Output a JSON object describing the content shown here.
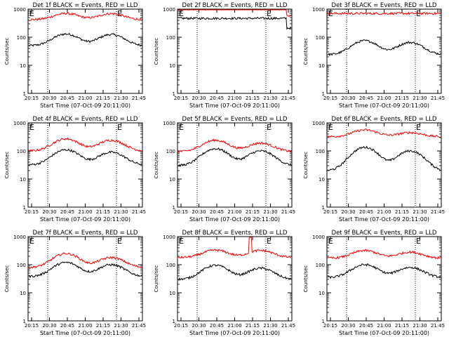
{
  "chart_data": [
    {
      "type": "line",
      "title": "Det 1f BLACK = Events, RED = LLD",
      "ylabel": "Counts/sec",
      "xlabel": "Start Time (07-Oct-09 20:11:00)",
      "x_ticks": [
        "20:15",
        "20:30",
        "20:45",
        "21:00",
        "21:15",
        "21:30",
        "21:45"
      ],
      "y_ticks": [
        "1",
        "10",
        "100",
        "1000"
      ],
      "yscale": "log",
      "ylim": [
        1,
        1000
      ],
      "markers": [
        "E",
        "E"
      ],
      "series": [
        {
          "color": "#000000",
          "base": 50,
          "peaks": [
            {
              "t": 33,
              "v": 130
            },
            {
              "t": 73,
              "v": 125
            }
          ]
        },
        {
          "color": "#ff0000",
          "base": 420,
          "peaks": [
            {
              "t": 33,
              "v": 700
            },
            {
              "t": 73,
              "v": 690
            }
          ]
        }
      ]
    },
    {
      "type": "line",
      "title": "Det 2f BLACK = Events, RED = LLD",
      "ylabel": "Counts/sec",
      "xlabel": "Start Time (07-Oct-09 20:11:00)",
      "x_ticks": [
        "20:15",
        "20:30",
        "20:45",
        "21:00",
        "21:15",
        "21:30",
        "21:45"
      ],
      "y_ticks": [
        "1",
        "10",
        "100",
        "1000"
      ],
      "yscale": "log",
      "ylim": [
        1,
        1000
      ],
      "markers": [
        "E",
        "E"
      ],
      "series": [
        {
          "color": "#000000",
          "base": 470,
          "peaks": [],
          "dip_end": true
        },
        {
          "color": "#ff0000",
          "base": 1300,
          "peaks": [],
          "dip_end": true
        }
      ]
    },
    {
      "type": "line",
      "title": "Det 3f BLACK = Events, RED = LLD",
      "ylabel": "Counts/sec",
      "xlabel": "Start Time (07-Oct-09 20:11:00)",
      "x_ticks": [
        "20:15",
        "20:30",
        "20:45",
        "21:00",
        "21:15",
        "21:30",
        "21:45"
      ],
      "y_ticks": [
        "1",
        "10",
        "100",
        "1000"
      ],
      "yscale": "log",
      "ylim": [
        1,
        1000
      ],
      "markers": [
        "E",
        "E"
      ],
      "series": [
        {
          "color": "#000000",
          "base": 24,
          "peaks": [
            {
              "t": 33,
              "v": 75
            },
            {
              "t": 73,
              "v": 65
            }
          ]
        },
        {
          "color": "#ff0000",
          "base": 700,
          "peaks": []
        }
      ]
    },
    {
      "type": "line",
      "title": "Det 4f BLACK = Events, RED = LLD",
      "ylabel": "Counts/sec",
      "xlabel": "Start Time (07-Oct-09 20:11:00)",
      "x_ticks": [
        "20:15",
        "20:30",
        "20:45",
        "21:00",
        "21:15",
        "21:30",
        "21:45"
      ],
      "y_ticks": [
        "1",
        "10",
        "100",
        "1000"
      ],
      "yscale": "log",
      "ylim": [
        1,
        1000
      ],
      "markers": [
        "E",
        "E"
      ],
      "series": [
        {
          "color": "#000000",
          "base": 32,
          "peaks": [
            {
              "t": 33,
              "v": 110
            },
            {
              "t": 73,
              "v": 90
            }
          ]
        },
        {
          "color": "#ff0000",
          "base": 100,
          "peaks": [
            {
              "t": 33,
              "v": 270
            },
            {
              "t": 73,
              "v": 240
            }
          ]
        }
      ]
    },
    {
      "type": "line",
      "title": "Det 5f BLACK = Events, RED = LLD",
      "ylabel": "Counts/sec",
      "xlabel": "Start Time (07-Oct-09 20:11:00)",
      "x_ticks": [
        "20:15",
        "20:30",
        "20:45",
        "21:00",
        "21:15",
        "21:30",
        "21:45"
      ],
      "y_ticks": [
        "1",
        "10",
        "100",
        "1000"
      ],
      "yscale": "log",
      "ylim": [
        1,
        1000
      ],
      "markers": [
        "E",
        "E"
      ],
      "series": [
        {
          "color": "#000000",
          "base": 30,
          "peaks": [
            {
              "t": 33,
              "v": 120
            },
            {
              "t": 73,
              "v": 100
            }
          ]
        },
        {
          "color": "#ff0000",
          "base": 95,
          "peaks": [
            {
              "t": 33,
              "v": 240
            },
            {
              "t": 73,
              "v": 190
            }
          ]
        }
      ]
    },
    {
      "type": "line",
      "title": "Det 6f BLACK = Events, RED = LLD",
      "ylabel": "Counts/sec",
      "xlabel": "Start Time (07-Oct-09 20:11:00)",
      "x_ticks": [
        "20:15",
        "20:30",
        "20:45",
        "21:00",
        "21:15",
        "21:30",
        "21:45"
      ],
      "y_ticks": [
        "1",
        "10",
        "100",
        "1000"
      ],
      "yscale": "log",
      "ylim": [
        1,
        1000
      ],
      "markers": [
        "E",
        "E"
      ],
      "series": [
        {
          "color": "#000000",
          "base": 20,
          "peaks": [
            {
              "t": 33,
              "v": 135
            },
            {
              "t": 73,
              "v": 100
            }
          ]
        },
        {
          "color": "#ff0000",
          "base": 320,
          "peaks": [
            {
              "t": 33,
              "v": 560
            },
            {
              "t": 73,
              "v": 450
            }
          ]
        }
      ]
    },
    {
      "type": "line",
      "title": "Det 7f BLACK = Events, RED = LLD",
      "ylabel": "Counts/sec",
      "xlabel": "Start Time (07-Oct-09 20:11:00)",
      "x_ticks": [
        "20:15",
        "20:30",
        "20:45",
        "21:00",
        "21:15",
        "21:30",
        "21:45"
      ],
      "y_ticks": [
        "1",
        "10",
        "100",
        "1000"
      ],
      "yscale": "log",
      "ylim": [
        1,
        1000
      ],
      "markers": [
        "E",
        "E"
      ],
      "series": [
        {
          "color": "#000000",
          "base": 38,
          "peaks": [
            {
              "t": 33,
              "v": 120
            },
            {
              "t": 73,
              "v": 100
            }
          ]
        },
        {
          "color": "#ff0000",
          "base": 80,
          "peaks": [
            {
              "t": 33,
              "v": 250
            },
            {
              "t": 73,
              "v": 180
            }
          ]
        }
      ]
    },
    {
      "type": "line",
      "title": "Det 8f BLACK = Events, RED = LLD",
      "ylabel": "Counts/sec",
      "xlabel": "Start Time (07-Oct-09 20:11:00)",
      "x_ticks": [
        "20:15",
        "20:30",
        "20:45",
        "21:00",
        "21:15",
        "21:30",
        "21:45"
      ],
      "y_ticks": [
        "1",
        "10",
        "100",
        "1000"
      ],
      "yscale": "log",
      "ylim": [
        1,
        1000
      ],
      "markers": [
        "E",
        "E"
      ],
      "series": [
        {
          "color": "#000000",
          "base": 30,
          "peaks": [
            {
              "t": 33,
              "v": 95
            },
            {
              "t": 73,
              "v": 75
            }
          ]
        },
        {
          "color": "#ff0000",
          "base": 180,
          "peaks": [
            {
              "t": 33,
              "v": 330
            },
            {
              "t": 73,
              "v": 320
            }
          ],
          "spike_at": 64
        }
      ]
    },
    {
      "type": "line",
      "title": "Det 9f BLACK = Events, RED = LLD",
      "ylabel": "Counts/sec",
      "xlabel": "Start Time (07-Oct-09 20:11:00)",
      "x_ticks": [
        "20:15",
        "20:30",
        "20:45",
        "21:00",
        "21:15",
        "21:30",
        "21:45"
      ],
      "y_ticks": [
        "1",
        "10",
        "100",
        "1000"
      ],
      "yscale": "log",
      "ylim": [
        1,
        1000
      ],
      "markers": [
        "E",
        "E"
      ],
      "series": [
        {
          "color": "#000000",
          "base": 35,
          "peaks": [
            {
              "t": 33,
              "v": 100
            },
            {
              "t": 73,
              "v": 80
            }
          ]
        },
        {
          "color": "#ff0000",
          "base": 170,
          "peaks": [
            {
              "t": 33,
              "v": 320
            },
            {
              "t": 73,
              "v": 280
            }
          ]
        }
      ]
    }
  ]
}
